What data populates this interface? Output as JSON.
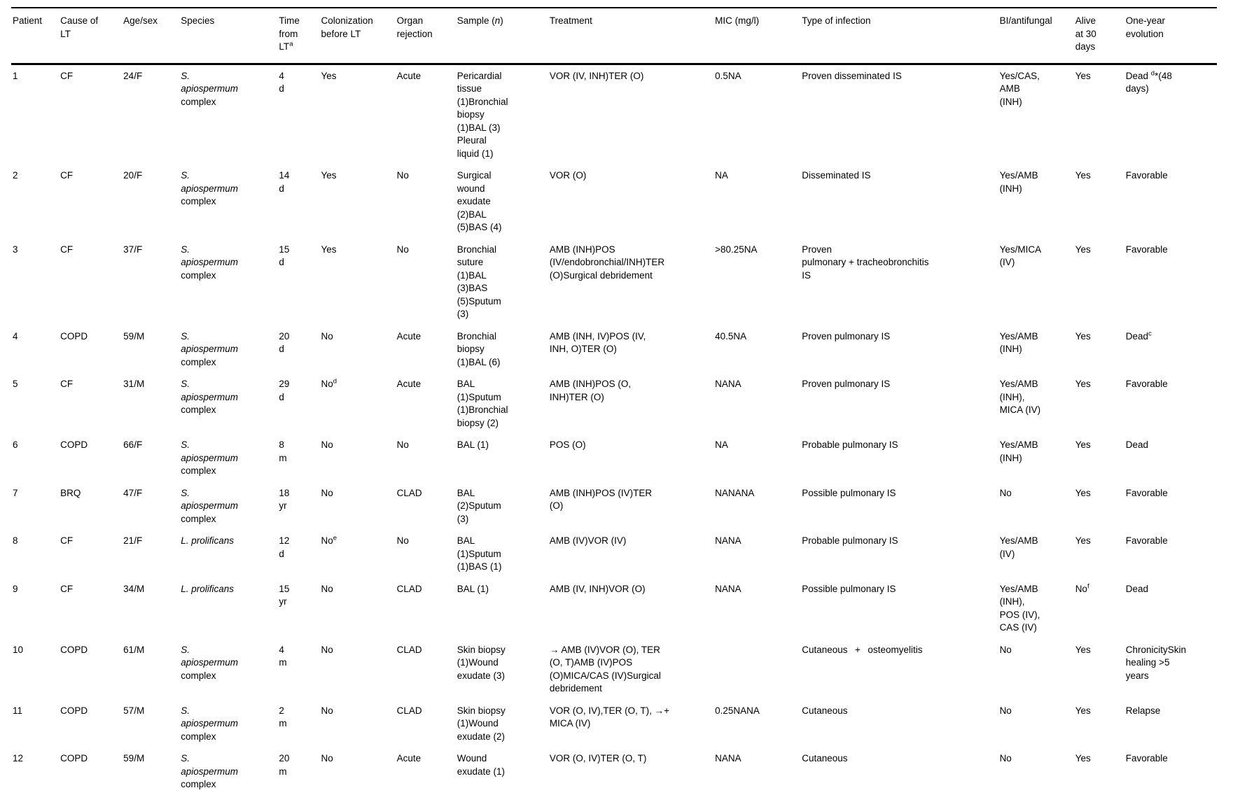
{
  "table": {
    "columns": [
      {
        "key": "patient",
        "label": "Patient"
      },
      {
        "key": "cause_of_lt",
        "label": "Cause of\nLT"
      },
      {
        "key": "age_sex",
        "label": "Age/sex"
      },
      {
        "key": "species",
        "label": "Species"
      },
      {
        "key": "time_from_lt",
        "label": "Time\nfrom\nLT^a^"
      },
      {
        "key": "colonization_before_lt",
        "label": "Colonization\nbefore LT"
      },
      {
        "key": "organ_rejection",
        "label": "Organ\nrejection"
      },
      {
        "key": "sample_n",
        "label": "Sample (*n*)"
      },
      {
        "key": "treatment",
        "label": "Treatment"
      },
      {
        "key": "mic_mg_l",
        "label": "MIC (mg/l)"
      },
      {
        "key": "type_of_infection",
        "label": "Type of infection"
      },
      {
        "key": "bi_antifungal",
        "label": "BI/antifungal"
      },
      {
        "key": "alive_30_days",
        "label": "Alive\nat 30\ndays"
      },
      {
        "key": "one_year_evolution",
        "label": "One-year\nevolution"
      }
    ],
    "rows": [
      [
        "1",
        "CF",
        "24/F",
        "*S.\napiospermum*\ncomplex",
        "4\nd",
        "Yes",
        "Acute",
        "Pericardial\ntissue\n(1)Bronchial\nbiopsy\n(1)BAL (3)\nPleural\nliquid (1)",
        "VOR (IV, INH)TER (O)",
        "0.5NA",
        "Proven disseminated IS",
        "Yes/CAS,\nAMB\n(INH)",
        "Yes",
        "Dead ^d^*(48\ndays)"
      ],
      [
        "2",
        "CF",
        "20/F",
        "*S.\napiospermum*\ncomplex",
        "14\nd",
        "Yes",
        "No",
        "Surgical\nwound\nexudate\n(2)BAL\n(5)BAS (4)",
        "VOR (O)",
        "NA",
        "Disseminated IS",
        "Yes/AMB\n(INH)",
        "Yes",
        "Favorable"
      ],
      [
        "3",
        "CF",
        "37/F",
        "*S.\napiospermum*\ncomplex",
        "15\nd",
        "Yes",
        "No",
        "Bronchial\nsuture\n(1)BAL\n(3)BAS\n(5)Sputum\n(3)",
        "AMB (INH)POS\n(IV/endobronchial/INH)TER\n(O)Surgical debridement",
        ">80.25NA",
        "Proven\npulmonary + tracheobronchitis\nIS",
        "Yes/MICA\n(IV)",
        "Yes",
        "Favorable"
      ],
      [
        "4",
        "COPD",
        "59/M",
        "*S.\napiospermum*\ncomplex",
        "20\nd",
        "No",
        "Acute",
        "Bronchial\nbiopsy\n(1)BAL (6)",
        "AMB (INH, IV)POS (IV,\nINH, O)TER (O)",
        "40.5NA",
        "Proven pulmonary IS",
        "Yes/AMB\n(INH)",
        "Yes",
        "Dead^c^"
      ],
      [
        "5",
        "CF",
        "31/M",
        "*S.\napiospermum*\ncomplex",
        "29\nd",
        "No^d^",
        "Acute",
        "BAL\n(1)Sputum\n(1)Bronchial\nbiopsy (2)",
        "AMB (INH)POS (O,\nINH)TER (O)",
        "NANA",
        "Proven pulmonary IS",
        "Yes/AMB\n(INH),\nMICA (IV)",
        "Yes",
        "Favorable"
      ],
      [
        "6",
        "COPD",
        "66/F",
        "*S.\napiospermum*\ncomplex",
        "8\nm",
        "No",
        "No",
        "BAL (1)",
        "POS (O)",
        "NA",
        "Probable pulmonary IS",
        "Yes/AMB\n(INH)",
        "Yes",
        "Dead"
      ],
      [
        "7",
        "BRQ",
        "47/F",
        "*S.\napiospermum*\ncomplex",
        "18\nyr",
        "No",
        "CLAD",
        "BAL\n(2)Sputum\n(3)",
        "AMB (INH)POS (IV)TER\n(O)",
        "NANANA",
        "Possible pulmonary IS",
        "No",
        "Yes",
        "Favorable"
      ],
      [
        "8",
        "CF",
        "21/F",
        "*L. prolificans*",
        "12\nd",
        "No^e^",
        "No",
        "BAL\n(1)Sputum\n(1)BAS (1)",
        "AMB (IV)VOR (IV)",
        "NANA",
        "Probable pulmonary IS",
        "Yes/AMB\n(IV)",
        "Yes",
        "Favorable"
      ],
      [
        "9",
        "CF",
        "34/M",
        "*L. prolificans*",
        "15\nyr",
        "No",
        "CLAD",
        "BAL (1)",
        "AMB (IV, INH)VOR (O)",
        "NANA",
        "Possible pulmonary IS",
        "Yes/AMB\n(INH),\nPOS (IV),\nCAS (IV)",
        "No^f^",
        "Dead"
      ],
      [
        "10",
        "COPD",
        "61/M",
        "*S.\napiospermum*\ncomplex",
        "4\nm",
        "No",
        "CLAD",
        "Skin biopsy\n(1)Wound\nexudate (3)",
        "→ AMB (IV)VOR (O), TER\n(O, T)AMB (IV)POS\n(O)MICA/CAS (IV)Surgical\ndebridement",
        "",
        "Cutaneous  +  osteomyelitis",
        "No",
        "Yes",
        "ChronicitySkin\nhealing >5\nyears"
      ],
      [
        "11",
        "COPD",
        "57/M",
        "*S.\napiospermum*\ncomplex",
        "2\nm",
        "No",
        "CLAD",
        "Skin biopsy\n(1)Wound\nexudate (2)",
        "VOR (O, IV),TER (O, T), →+\nMICA (IV)",
        "0.25NANA",
        "Cutaneous",
        "No",
        "Yes",
        "Relapse"
      ],
      [
        "12",
        "COPD",
        "59/M",
        "*S.\napiospermum*\ncomplex",
        "20\nm",
        "No",
        "Acute",
        "Wound\nexudate (1)",
        "VOR (O, IV)TER (O, T)",
        "NANA",
        "Cutaneous",
        "No",
        "Yes",
        "Favorable"
      ]
    ]
  }
}
